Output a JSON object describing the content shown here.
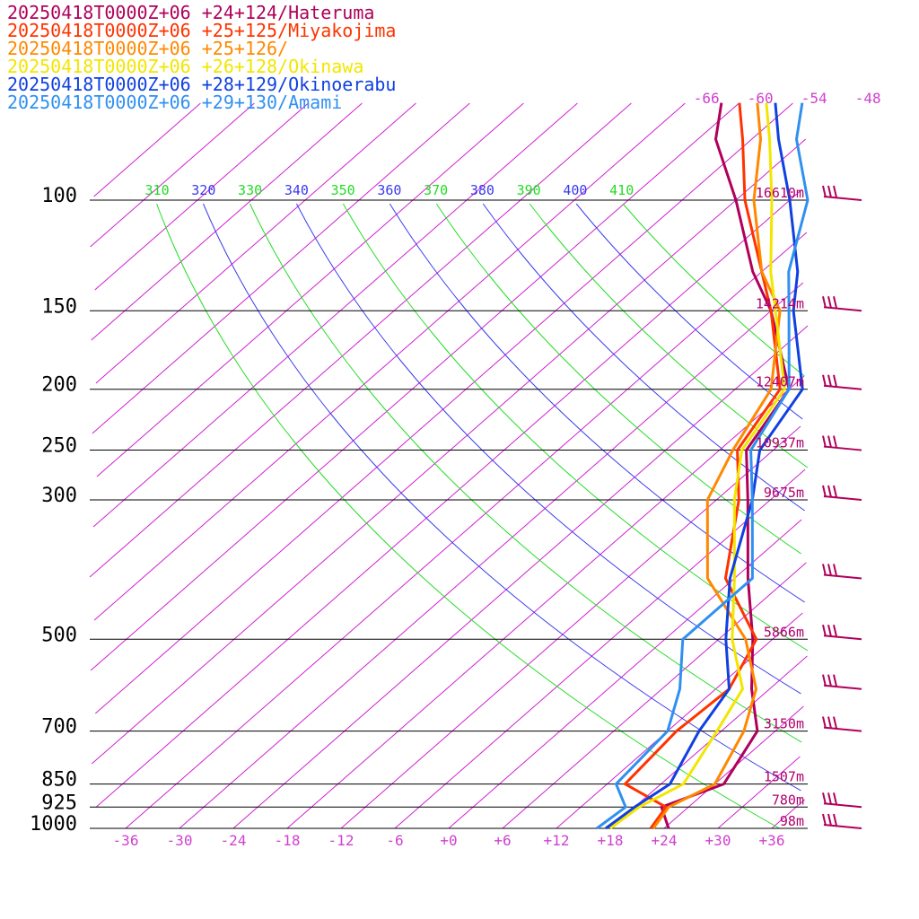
{
  "chart_data": {
    "type": "line",
    "title": "",
    "xlabel": "",
    "ylabel": "",
    "x_unit": "degC",
    "xlim": [
      -40,
      40
    ],
    "ylim": [
      1000,
      100
    ],
    "log_y": true,
    "pressure_ticks": [
      "100",
      "150",
      "200",
      "250",
      "300",
      "500",
      "700",
      "850",
      "925",
      "1000"
    ],
    "temp_ticks": [
      "-36",
      "-30",
      "-24",
      "-18",
      "-12",
      "-6",
      "+0",
      "+6",
      "+12",
      "+18",
      "+24",
      "+30",
      "+36"
    ],
    "isotherm_top_labels": [
      "-66",
      "-60",
      "-54",
      "-48"
    ],
    "theta_labels": [
      {
        "text": "310",
        "value": 310,
        "color": "#22dd22"
      },
      {
        "text": "320",
        "value": 320,
        "color": "#3a3aee"
      },
      {
        "text": "330",
        "value": 330,
        "color": "#22dd22"
      },
      {
        "text": "340",
        "value": 340,
        "color": "#3a3aee"
      },
      {
        "text": "350",
        "value": 350,
        "color": "#22dd22"
      },
      {
        "text": "360",
        "value": 360,
        "color": "#3a3aee"
      },
      {
        "text": "370",
        "value": 370,
        "color": "#22dd22"
      },
      {
        "text": "380",
        "value": 380,
        "color": "#3a3aee"
      },
      {
        "text": "390",
        "value": 390,
        "color": "#22dd22"
      },
      {
        "text": "400",
        "value": 400,
        "color": "#3a3aee"
      },
      {
        "text": "410",
        "value": 410,
        "color": "#22dd22"
      }
    ],
    "height_labels": [
      {
        "p": 100,
        "text": "16610m"
      },
      {
        "p": 150,
        "text": "14214m"
      },
      {
        "p": 200,
        "text": "12407m"
      },
      {
        "p": 250,
        "text": "10937m"
      },
      {
        "p": 300,
        "text": "9675m"
      },
      {
        "p": 500,
        "text": "5866m"
      },
      {
        "p": 700,
        "text": "3150m"
      },
      {
        "p": 850,
        "text": "1507m"
      },
      {
        "p": 925,
        "text": "780m"
      },
      {
        "p": 1000,
        "text": "98m"
      }
    ],
    "wind_levels": [
      100,
      150,
      200,
      250,
      300,
      400,
      500,
      600,
      700,
      925,
      1000
    ],
    "series": [
      {
        "name": "20250418T0000Z+06 +24+124/Hateruma",
        "color": "#b0005a",
        "p": [
          1000,
          925,
          850,
          700,
          600,
          500,
          400,
          300,
          250,
          200,
          150,
          130,
          100,
          80,
          70
        ],
        "t": [
          24.5,
          21.0,
          25.0,
          22.0,
          16.0,
          9.8,
          1.5,
          -8.5,
          -15.0,
          -18.0,
          -30.0,
          -37.0,
          -48.0,
          -58.0,
          -62.0
        ]
      },
      {
        "name": "20250418T0000Z+06 +25+125/Miyakojima",
        "color": "#ff3300",
        "p": [
          1000,
          925,
          850,
          700,
          600,
          500,
          400,
          300,
          250,
          200,
          150,
          130,
          100,
          80,
          70
        ],
        "t": [
          22.5,
          21.5,
          14.0,
          13.0,
          13.5,
          10.2,
          -1.0,
          -9.5,
          -16.0,
          -19.0,
          -30.0,
          -36.0,
          -47.0,
          -55.0,
          -60.0
        ]
      },
      {
        "name": "20250418T0000Z+06 +25+126/",
        "color": "#ff8800",
        "p": [
          1000,
          925,
          850,
          700,
          600,
          500,
          400,
          300,
          250,
          200,
          150,
          130,
          100,
          80,
          70
        ],
        "t": [
          22.8,
          21.8,
          24.0,
          20.5,
          16.5,
          9.0,
          -3.0,
          -13.0,
          -16.5,
          -20.0,
          -29.0,
          -36.0,
          -46.0,
          -53.0,
          -58.0
        ]
      },
      {
        "name": "20250418T0000Z+06 +26+128/Okinawa",
        "color": "#f2e600",
        "p": [
          1000,
          925,
          850,
          700,
          600,
          500,
          400,
          300,
          250,
          200,
          150,
          130,
          100,
          80,
          70
        ],
        "t": [
          18.0,
          18.5,
          20.5,
          17.5,
          15.0,
          7.5,
          0.0,
          -10.0,
          -15.5,
          -18.5,
          -29.5,
          -35.0,
          -44.0,
          -52.0,
          -57.0
        ]
      },
      {
        "name": "20250418T0000Z+06 +28+129/Okinoerabu",
        "color": "#1040e0",
        "p": [
          1000,
          925,
          850,
          700,
          600,
          500,
          400,
          300,
          250,
          200,
          150,
          130,
          100,
          80,
          70
        ],
        "t": [
          17.5,
          18.0,
          19.0,
          15.5,
          13.5,
          6.8,
          -0.5,
          -8.0,
          -13.5,
          -16.5,
          -27.5,
          -32.0,
          -42.0,
          -51.0,
          -56.0
        ]
      },
      {
        "name": "20250418T0000Z+06 +29+130/Amami",
        "color": "#3090f0",
        "p": [
          1000,
          925,
          850,
          700,
          600,
          500,
          400,
          300,
          250,
          200,
          150,
          130,
          100,
          80,
          70
        ],
        "t": [
          16.5,
          17.0,
          13.0,
          12.0,
          8.0,
          2.0,
          2.0,
          -8.0,
          -14.5,
          -18.0,
          -28.0,
          -33.0,
          -40.0,
          -49.0,
          -53.0
        ]
      }
    ]
  }
}
